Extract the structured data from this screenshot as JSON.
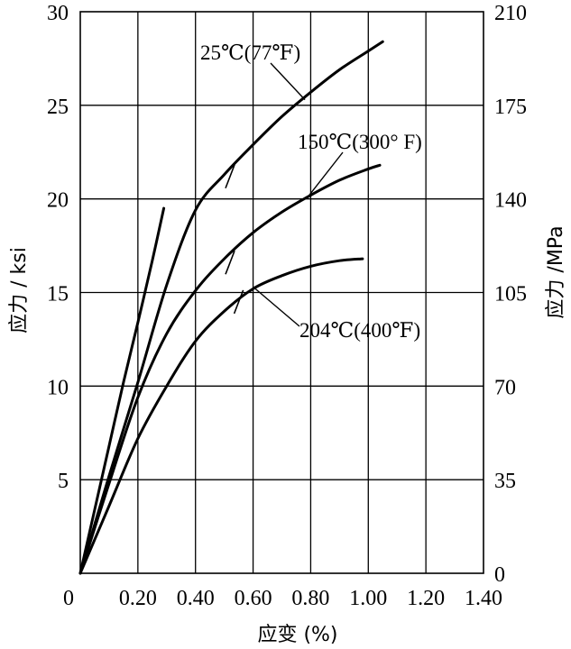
{
  "chart_data": {
    "type": "line",
    "xlabel": "应变 (%)",
    "ylabel": "应力 / ksi",
    "ylabel_right": "应力 /MPa",
    "xlim": [
      0,
      1.4
    ],
    "ylim": [
      0,
      30
    ],
    "ylim_right": [
      0,
      210
    ],
    "x_ticks": [
      0,
      0.2,
      0.4,
      0.6,
      0.8,
      1.0,
      1.2,
      1.4
    ],
    "x_tick_labels": [
      "0",
      "0.20",
      "0.40",
      "0.60",
      "0.80",
      "1.00",
      "1.20",
      "1.40"
    ],
    "y_ticks": [
      5,
      10,
      15,
      20,
      25,
      30
    ],
    "y_tick_labels": [
      "5",
      "10",
      "15",
      "20",
      "25",
      "30"
    ],
    "y_right_ticks": [
      0,
      35,
      70,
      105,
      140,
      175,
      210
    ],
    "y_right_tick_labels": [
      "0",
      "35",
      "70",
      "105",
      "140",
      "175",
      "210"
    ],
    "grid": true,
    "series": [
      {
        "name": "25℃(77℉)",
        "x": [
          0,
          0.1,
          0.2,
          0.3,
          0.4,
          0.5,
          0.6,
          0.7,
          0.8,
          0.9,
          1.0,
          1.05
        ],
        "y": [
          0,
          5.2,
          10.2,
          15.4,
          19.4,
          21.3,
          22.9,
          24.4,
          25.7,
          26.9,
          27.9,
          28.4
        ],
        "label_x": 0.78,
        "label_y": 25.3
      },
      {
        "name": "150℃(300° F)",
        "x": [
          0,
          0.1,
          0.2,
          0.3,
          0.4,
          0.5,
          0.6,
          0.7,
          0.8,
          0.9,
          1.0,
          1.04
        ],
        "y": [
          0,
          4.8,
          9.4,
          12.8,
          15.1,
          16.8,
          18.2,
          19.3,
          20.2,
          21.0,
          21.6,
          21.8
        ],
        "label_x": 0.79,
        "label_y": 20.1
      },
      {
        "name": "204℃(400℉)",
        "x": [
          0,
          0.1,
          0.2,
          0.3,
          0.4,
          0.5,
          0.6,
          0.7,
          0.8,
          0.9,
          0.98
        ],
        "y": [
          0,
          3.6,
          7.2,
          10.0,
          12.4,
          14.0,
          15.2,
          15.9,
          16.4,
          16.7,
          16.8
        ],
        "label_x": 0.6,
        "label_y": 15.3
      },
      {
        "name": "",
        "x": [
          0,
          0.05,
          0.1,
          0.15,
          0.2,
          0.25,
          0.29
        ],
        "y": [
          0,
          3.4,
          6.8,
          10.2,
          13.4,
          16.7,
          19.5
        ]
      }
    ],
    "slash_marks": [
      {
        "x": 0.52,
        "y": 21.2
      },
      {
        "x": 0.52,
        "y": 16.6
      },
      {
        "x": 0.55,
        "y": 14.5
      }
    ]
  }
}
